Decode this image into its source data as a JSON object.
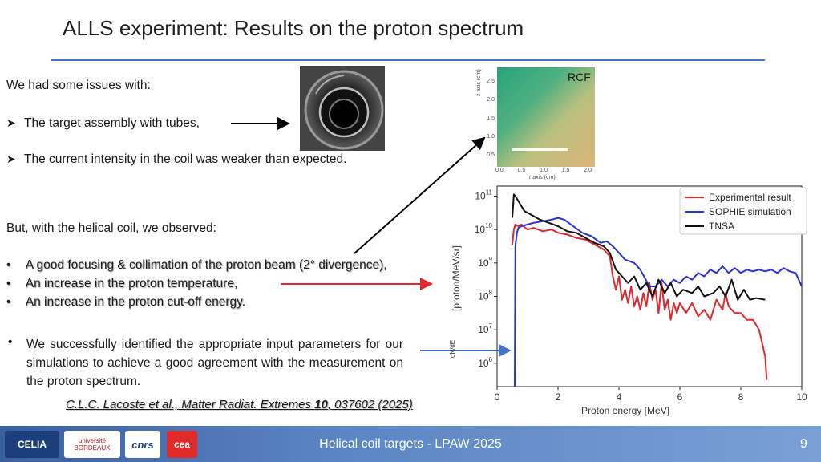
{
  "slide": {
    "title": "ALLS experiment: Results on the proton spectrum",
    "issues_intro": "We had some issues with:",
    "issue_1": "The target assembly with tubes,",
    "issue_2": "The current intensity in the coil was weaker than expected.",
    "observed_intro": "But, with the helical coil, we observed:",
    "obs_1": "A good focusing & collimation of the proton beam (2° divergence),",
    "obs_2": "An increase in the proton temperature,",
    "obs_3": "An increase in the proton cut-off energy.",
    "paragraph": "We successfully identified the appropriate input parameters for our simulations to achieve a good agreement with the measurement on the proton spectrum.",
    "citation_pre": "C.L.C. Lacoste et al., Matter Radiat. Extremes ",
    "citation_bold": "10",
    "citation_post": ", 037602 (2025)",
    "rcf_label": "RCF",
    "rcf_ticks_y": [
      "2.5",
      "2.0",
      "1.5",
      "1.0",
      "0.5",
      "0.0"
    ],
    "rcf_ticks_x": [
      "0.0",
      "0.5",
      "1.0",
      "1.5",
      "2.0"
    ],
    "rcf_xlabel": "r axis (cm)",
    "rcf_ylabel": "z axis (cm)"
  },
  "footer": {
    "text": "Helical coil targets - LPAW 2025",
    "page": "9",
    "logos": [
      "CELIA",
      "université BORDEAUX",
      "cnrs",
      "cea"
    ]
  },
  "colors": {
    "accent": "#4a74c4",
    "arrow_black": "#000000",
    "arrow_red": "#e0282e",
    "arrow_blue": "#4472c4",
    "experimental": "#e0282e",
    "sophie": "#2a33d6",
    "tnsa": "#111111"
  },
  "chart_data": {
    "type": "line",
    "xlabel": "Proton energy [MeV]",
    "ylabel": "dN/dE [proton/MeV/sr]",
    "ylabel_numerator": "dN",
    "ylabel_denominator": "dE",
    "ylabel_unit": "[proton/MeV/sr]",
    "xlim": [
      0,
      10
    ],
    "ylim_log10": [
      5.3,
      11.3
    ],
    "log_y": true,
    "x_ticks": [
      0,
      2,
      4,
      6,
      8,
      10
    ],
    "y_tick_exponents": [
      6,
      7,
      8,
      9,
      10,
      11
    ],
    "legend_position": "top-right",
    "series": [
      {
        "name": "Experimental result",
        "color_key": "experimental",
        "points": [
          [
            0.5,
            9.55
          ],
          [
            0.55,
            10.0
          ],
          [
            0.6,
            10.15
          ],
          [
            0.7,
            10.1
          ],
          [
            0.8,
            10.15
          ],
          [
            1.0,
            10.0
          ],
          [
            1.2,
            10.05
          ],
          [
            1.5,
            9.95
          ],
          [
            1.8,
            10.0
          ],
          [
            2.0,
            9.9
          ],
          [
            2.3,
            9.85
          ],
          [
            2.6,
            9.75
          ],
          [
            2.9,
            9.7
          ],
          [
            3.2,
            9.55
          ],
          [
            3.5,
            9.4
          ],
          [
            3.7,
            9.2
          ],
          [
            3.8,
            8.6
          ],
          [
            3.9,
            8.2
          ],
          [
            4.0,
            8.6
          ],
          [
            4.1,
            7.9
          ],
          [
            4.2,
            8.2
          ],
          [
            4.3,
            7.8
          ],
          [
            4.4,
            8.3
          ],
          [
            4.5,
            7.7
          ],
          [
            4.6,
            8.0
          ],
          [
            4.7,
            7.6
          ],
          [
            4.8,
            8.1
          ],
          [
            4.9,
            7.7
          ],
          [
            5.0,
            8.4
          ],
          [
            5.1,
            7.9
          ],
          [
            5.2,
            8.2
          ],
          [
            5.3,
            7.5
          ],
          [
            5.4,
            8.4
          ],
          [
            5.5,
            7.6
          ],
          [
            5.6,
            7.9
          ],
          [
            5.7,
            7.3
          ],
          [
            5.8,
            7.8
          ],
          [
            5.9,
            7.5
          ],
          [
            6.0,
            7.8
          ],
          [
            6.2,
            7.5
          ],
          [
            6.4,
            7.8
          ],
          [
            6.6,
            7.4
          ],
          [
            6.8,
            7.6
          ],
          [
            7.0,
            7.3
          ],
          [
            7.2,
            7.9
          ],
          [
            7.4,
            7.6
          ],
          [
            7.5,
            8.1
          ],
          [
            7.6,
            7.7
          ],
          [
            7.8,
            7.5
          ],
          [
            8.0,
            7.5
          ],
          [
            8.2,
            7.3
          ],
          [
            8.4,
            7.3
          ],
          [
            8.6,
            7.0
          ],
          [
            8.8,
            6.2
          ],
          [
            8.85,
            5.5
          ]
        ]
      },
      {
        "name": "SOPHIE simulation",
        "color_key": "sophie",
        "points": [
          [
            0.58,
            5.3
          ],
          [
            0.6,
            9.5
          ],
          [
            0.65,
            9.9
          ],
          [
            0.7,
            10.05
          ],
          [
            0.8,
            10.1
          ],
          [
            1.0,
            10.15
          ],
          [
            1.2,
            10.2
          ],
          [
            1.5,
            10.25
          ],
          [
            1.8,
            10.3
          ],
          [
            2.0,
            10.35
          ],
          [
            2.2,
            10.3
          ],
          [
            2.5,
            10.1
          ],
          [
            2.8,
            9.9
          ],
          [
            3.1,
            9.8
          ],
          [
            3.4,
            9.6
          ],
          [
            3.6,
            9.65
          ],
          [
            3.8,
            9.5
          ],
          [
            4.0,
            9.3
          ],
          [
            4.2,
            9.1
          ],
          [
            4.5,
            9.0
          ],
          [
            4.7,
            8.8
          ],
          [
            5.0,
            8.3
          ],
          [
            5.2,
            8.3
          ],
          [
            5.4,
            8.5
          ],
          [
            5.6,
            8.3
          ],
          [
            5.8,
            8.5
          ],
          [
            6.0,
            8.4
          ],
          [
            6.2,
            8.6
          ],
          [
            6.4,
            8.5
          ],
          [
            6.6,
            8.7
          ],
          [
            6.8,
            8.6
          ],
          [
            7.0,
            8.8
          ],
          [
            7.2,
            8.7
          ],
          [
            7.4,
            8.9
          ],
          [
            7.6,
            8.7
          ],
          [
            7.8,
            8.85
          ],
          [
            8.0,
            8.7
          ],
          [
            8.2,
            8.8
          ],
          [
            8.4,
            8.75
          ],
          [
            8.6,
            8.8
          ],
          [
            8.8,
            8.75
          ],
          [
            9.0,
            8.8
          ],
          [
            9.2,
            8.7
          ],
          [
            9.4,
            8.85
          ],
          [
            9.6,
            8.75
          ],
          [
            9.8,
            8.7
          ],
          [
            10.0,
            8.3
          ]
        ]
      },
      {
        "name": "TNSA",
        "color_key": "tnsa",
        "points": [
          [
            0.5,
            10.35
          ],
          [
            0.55,
            11.05
          ],
          [
            0.6,
            11.0
          ],
          [
            0.7,
            10.85
          ],
          [
            0.8,
            10.7
          ],
          [
            0.9,
            10.55
          ],
          [
            1.0,
            10.5
          ],
          [
            1.2,
            10.4
          ],
          [
            1.4,
            10.3
          ],
          [
            1.7,
            10.2
          ],
          [
            2.0,
            10.1
          ],
          [
            2.3,
            9.95
          ],
          [
            2.6,
            9.9
          ],
          [
            2.9,
            9.75
          ],
          [
            3.2,
            9.6
          ],
          [
            3.5,
            9.5
          ],
          [
            3.7,
            9.3
          ],
          [
            3.9,
            8.8
          ],
          [
            4.1,
            8.6
          ],
          [
            4.3,
            8.4
          ],
          [
            4.5,
            8.6
          ],
          [
            4.7,
            8.2
          ],
          [
            4.9,
            8.4
          ],
          [
            5.1,
            8.0
          ],
          [
            5.3,
            8.5
          ],
          [
            5.5,
            8.1
          ],
          [
            5.7,
            8.4
          ],
          [
            5.9,
            8.0
          ],
          [
            6.1,
            8.2
          ],
          [
            6.4,
            8.1
          ],
          [
            6.6,
            8.3
          ],
          [
            6.8,
            8.0
          ],
          [
            7.1,
            8.1
          ],
          [
            7.3,
            8.3
          ],
          [
            7.5,
            8.0
          ],
          [
            7.7,
            8.5
          ],
          [
            7.9,
            7.9
          ],
          [
            8.1,
            8.2
          ],
          [
            8.3,
            7.9
          ],
          [
            8.5,
            7.95
          ],
          [
            8.8,
            7.9
          ]
        ]
      }
    ]
  }
}
